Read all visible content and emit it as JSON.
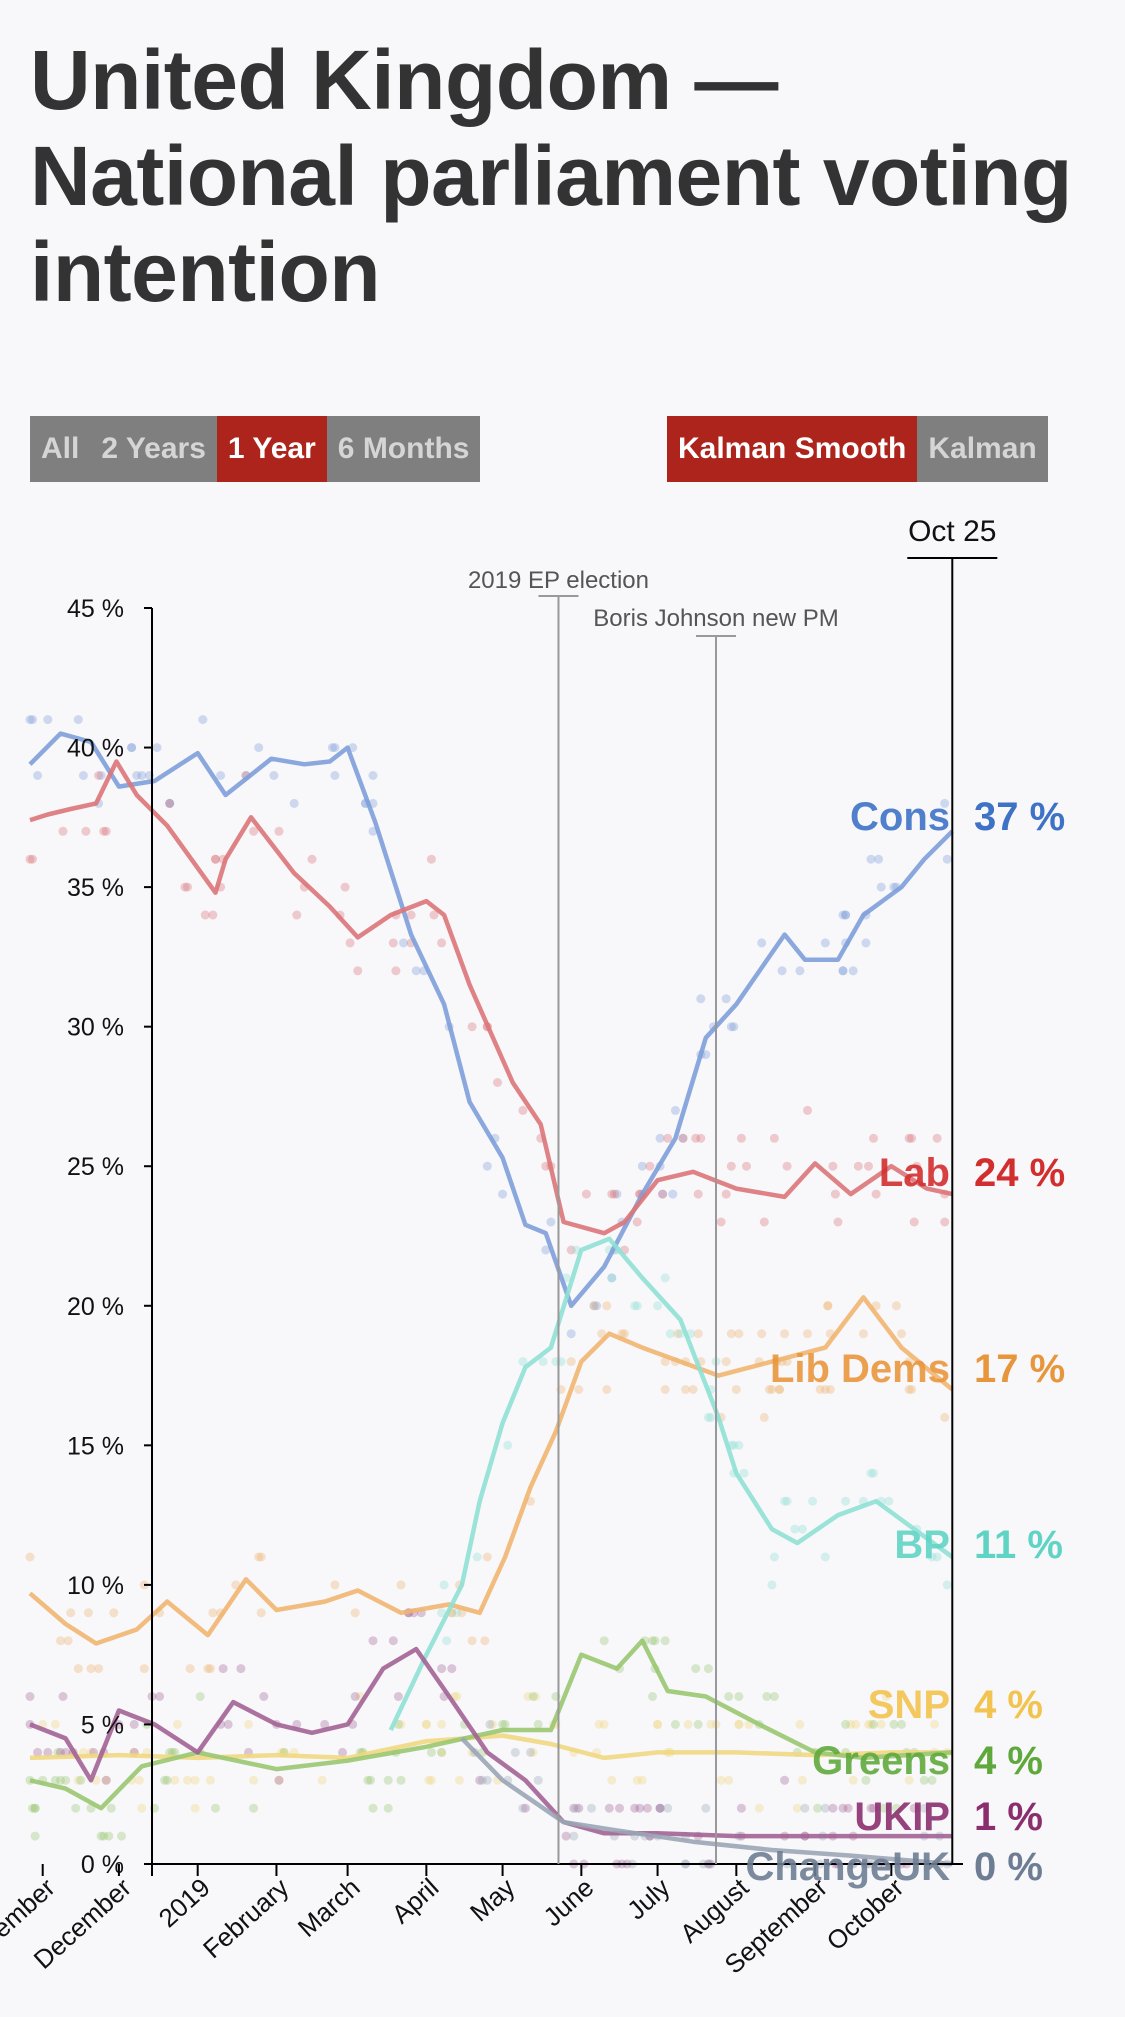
{
  "title": "United Kingdom — National parliament voting intention",
  "range_buttons": [
    {
      "label": "All",
      "active": false
    },
    {
      "label": "2 Years",
      "active": false
    },
    {
      "label": "1 Year",
      "active": true
    },
    {
      "label": "6 Months",
      "active": false
    }
  ],
  "model_buttons": [
    {
      "label": "Kalman Smooth",
      "active": true
    },
    {
      "label": "Kalman",
      "active": false
    }
  ],
  "chart_data": {
    "type": "line",
    "ylim": [
      0,
      45
    ],
    "y_ticks": [
      "0 %",
      "5 %",
      "10 %",
      "15 %",
      "20 %",
      "25 %",
      "30 %",
      "35 %",
      "40 %",
      "45 %"
    ],
    "y_tick_values": [
      0,
      5,
      10,
      15,
      20,
      25,
      30,
      35,
      40,
      45
    ],
    "x_ticks": [
      "November",
      "December",
      "2019",
      "February",
      "March",
      "April",
      "May",
      "June",
      "July",
      "August",
      "September",
      "October"
    ],
    "x_tick_dates": [
      "2018-11-01",
      "2018-12-01",
      "2019-01-01",
      "2019-02-01",
      "2019-03-01",
      "2019-04-01",
      "2019-05-01",
      "2019-06-01",
      "2019-07-01",
      "2019-08-01",
      "2019-09-01",
      "2019-10-01"
    ],
    "x_range": [
      "2018-10-27",
      "2019-10-30"
    ],
    "current_date_label": "Oct 25",
    "current_date": "2019-10-25",
    "events": [
      {
        "label": "2019 EP election",
        "date": "2019-05-23"
      },
      {
        "label": "Boris Johnson new PM",
        "date": "2019-07-24"
      }
    ],
    "grid": false,
    "legend": "end-of-line labels",
    "series": [
      {
        "name": "Cons",
        "label": "37 %",
        "color": "#3d72c6",
        "line_color": "#7d9fd9",
        "points": [
          [
            "2018-10-27",
            39.4
          ],
          [
            "2018-11-08",
            40.5
          ],
          [
            "2018-11-20",
            40.2
          ],
          [
            "2018-12-01",
            38.6
          ],
          [
            "2018-12-15",
            38.8
          ],
          [
            "2019-01-01",
            39.8
          ],
          [
            "2019-01-12",
            38.3
          ],
          [
            "2019-01-30",
            39.6
          ],
          [
            "2019-02-12",
            39.4
          ],
          [
            "2019-02-22",
            39.5
          ],
          [
            "2019-03-01",
            40.0
          ],
          [
            "2019-03-12",
            37.3
          ],
          [
            "2019-03-26",
            33.3
          ],
          [
            "2019-04-08",
            30.8
          ],
          [
            "2019-04-18",
            27.3
          ],
          [
            "2019-05-01",
            25.3
          ],
          [
            "2019-05-10",
            22.9
          ],
          [
            "2019-05-18",
            22.6
          ],
          [
            "2019-05-28",
            20.0
          ],
          [
            "2019-06-10",
            21.4
          ],
          [
            "2019-06-25",
            24.0
          ],
          [
            "2019-07-08",
            26.0
          ],
          [
            "2019-07-20",
            29.6
          ],
          [
            "2019-08-01",
            30.8
          ],
          [
            "2019-08-20",
            33.3
          ],
          [
            "2019-08-28",
            32.4
          ],
          [
            "2019-09-10",
            32.4
          ],
          [
            "2019-09-20",
            34.0
          ],
          [
            "2019-10-05",
            35.0
          ],
          [
            "2019-10-14",
            36.0
          ],
          [
            "2019-10-25",
            37.0
          ]
        ]
      },
      {
        "name": "Lab",
        "label": "24 %",
        "color": "#d22e2e",
        "line_color": "#db7478",
        "points": [
          [
            "2018-10-27",
            37.4
          ],
          [
            "2018-11-03",
            37.6
          ],
          [
            "2018-11-12",
            37.8
          ],
          [
            "2018-11-22",
            38.0
          ],
          [
            "2018-11-30",
            39.5
          ],
          [
            "2018-12-08",
            38.3
          ],
          [
            "2018-12-20",
            37.2
          ],
          [
            "2019-01-08",
            34.8
          ],
          [
            "2019-01-12",
            36.0
          ],
          [
            "2019-01-22",
            37.5
          ],
          [
            "2019-02-08",
            35.5
          ],
          [
            "2019-02-22",
            34.3
          ],
          [
            "2019-03-05",
            33.2
          ],
          [
            "2019-03-18",
            34.0
          ],
          [
            "2019-04-01",
            34.5
          ],
          [
            "2019-04-08",
            34.0
          ],
          [
            "2019-04-18",
            31.5
          ],
          [
            "2019-05-05",
            28.0
          ],
          [
            "2019-05-16",
            26.5
          ],
          [
            "2019-05-25",
            23.0
          ],
          [
            "2019-06-10",
            22.6
          ],
          [
            "2019-06-18",
            23.0
          ],
          [
            "2019-07-01",
            24.5
          ],
          [
            "2019-07-15",
            24.8
          ],
          [
            "2019-08-01",
            24.2
          ],
          [
            "2019-08-20",
            23.9
          ],
          [
            "2019-09-01",
            25.1
          ],
          [
            "2019-09-15",
            24.0
          ],
          [
            "2019-10-01",
            25.0
          ],
          [
            "2019-10-15",
            24.2
          ],
          [
            "2019-10-25",
            24.0
          ]
        ]
      },
      {
        "name": "Lib Dems",
        "label": "17 %",
        "color": "#e8963c",
        "line_color": "#efb56f",
        "points": [
          [
            "2018-10-27",
            9.7
          ],
          [
            "2018-11-10",
            8.6
          ],
          [
            "2018-11-22",
            7.9
          ],
          [
            "2018-12-08",
            8.4
          ],
          [
            "2018-12-20",
            9.4
          ],
          [
            "2019-01-05",
            8.2
          ],
          [
            "2019-01-20",
            10.2
          ],
          [
            "2019-02-01",
            9.1
          ],
          [
            "2019-02-20",
            9.4
          ],
          [
            "2019-03-05",
            9.8
          ],
          [
            "2019-03-22",
            9.0
          ],
          [
            "2019-04-10",
            9.3
          ],
          [
            "2019-04-22",
            9.0
          ],
          [
            "2019-05-02",
            11.0
          ],
          [
            "2019-05-12",
            13.5
          ],
          [
            "2019-05-22",
            15.5
          ],
          [
            "2019-06-01",
            18.0
          ],
          [
            "2019-06-12",
            19.0
          ],
          [
            "2019-06-25",
            18.5
          ],
          [
            "2019-07-10",
            18.0
          ],
          [
            "2019-07-25",
            17.5
          ],
          [
            "2019-08-15",
            18.0
          ],
          [
            "2019-09-05",
            18.5
          ],
          [
            "2019-09-20",
            20.3
          ],
          [
            "2019-10-05",
            18.5
          ],
          [
            "2019-10-25",
            17.0
          ]
        ]
      },
      {
        "name": "BP",
        "label": "11 %",
        "color": "#5fd4c4",
        "line_color": "#8ee0d4",
        "points": [
          [
            "2019-03-18",
            4.8
          ],
          [
            "2019-04-01",
            7.5
          ],
          [
            "2019-04-15",
            10.0
          ],
          [
            "2019-04-22",
            13.0
          ],
          [
            "2019-05-01",
            15.8
          ],
          [
            "2019-05-10",
            17.8
          ],
          [
            "2019-05-20",
            18.5
          ],
          [
            "2019-06-01",
            22.0
          ],
          [
            "2019-06-12",
            22.4
          ],
          [
            "2019-06-25",
            21.0
          ],
          [
            "2019-07-10",
            19.5
          ],
          [
            "2019-07-25",
            16.0
          ],
          [
            "2019-08-01",
            14.0
          ],
          [
            "2019-08-15",
            12.0
          ],
          [
            "2019-08-25",
            11.5
          ],
          [
            "2019-09-10",
            12.5
          ],
          [
            "2019-09-25",
            13.0
          ],
          [
            "2019-10-10",
            12.0
          ],
          [
            "2019-10-25",
            11.0
          ]
        ]
      },
      {
        "name": "SNP",
        "label": "4 %",
        "color": "#f2c34e",
        "line_color": "#f0d77f",
        "points": [
          [
            "2018-10-27",
            3.8
          ],
          [
            "2018-12-01",
            3.9
          ],
          [
            "2019-01-01",
            3.8
          ],
          [
            "2019-02-01",
            3.9
          ],
          [
            "2019-03-01",
            3.8
          ],
          [
            "2019-04-01",
            4.4
          ],
          [
            "2019-05-01",
            4.6
          ],
          [
            "2019-05-20",
            4.3
          ],
          [
            "2019-06-10",
            3.8
          ],
          [
            "2019-07-01",
            4.0
          ],
          [
            "2019-08-01",
            4.0
          ],
          [
            "2019-09-01",
            3.9
          ],
          [
            "2019-10-01",
            4.0
          ],
          [
            "2019-10-25",
            4.0
          ]
        ]
      },
      {
        "name": "Greens",
        "label": "4 %",
        "color": "#5fa83c",
        "line_color": "#99c770",
        "points": [
          [
            "2018-10-27",
            3.0
          ],
          [
            "2018-11-10",
            2.7
          ],
          [
            "2018-11-24",
            2.0
          ],
          [
            "2018-12-10",
            3.5
          ],
          [
            "2019-01-01",
            4.0
          ],
          [
            "2019-02-01",
            3.4
          ],
          [
            "2019-03-01",
            3.7
          ],
          [
            "2019-04-01",
            4.2
          ],
          [
            "2019-05-01",
            4.8
          ],
          [
            "2019-05-20",
            4.8
          ],
          [
            "2019-06-01",
            7.5
          ],
          [
            "2019-06-15",
            7.0
          ],
          [
            "2019-06-25",
            8.0
          ],
          [
            "2019-07-05",
            6.2
          ],
          [
            "2019-07-20",
            6.0
          ],
          [
            "2019-08-10",
            5.0
          ],
          [
            "2019-09-01",
            4.0
          ],
          [
            "2019-09-20",
            3.8
          ],
          [
            "2019-10-25",
            4.0
          ]
        ]
      },
      {
        "name": "UKIP",
        "label": "1 %",
        "color": "#8b2e6e",
        "line_color": "#a26395",
        "points": [
          [
            "2018-10-27",
            5.0
          ],
          [
            "2018-11-10",
            4.5
          ],
          [
            "2018-11-20",
            3.0
          ],
          [
            "2018-12-01",
            5.5
          ],
          [
            "2018-12-15",
            5.0
          ],
          [
            "2019-01-01",
            4.0
          ],
          [
            "2019-01-15",
            5.8
          ],
          [
            "2019-02-01",
            5.0
          ],
          [
            "2019-02-15",
            4.7
          ],
          [
            "2019-03-01",
            5.0
          ],
          [
            "2019-03-15",
            7.0
          ],
          [
            "2019-03-28",
            7.7
          ],
          [
            "2019-04-10",
            6.0
          ],
          [
            "2019-04-25",
            4.0
          ],
          [
            "2019-05-10",
            3.0
          ],
          [
            "2019-05-25",
            1.5
          ],
          [
            "2019-06-10",
            1.1
          ],
          [
            "2019-07-01",
            1.1
          ],
          [
            "2019-08-01",
            1.0
          ],
          [
            "2019-09-01",
            1.0
          ],
          [
            "2019-10-25",
            1.0
          ]
        ]
      },
      {
        "name": "ChangeUK",
        "label": "0 %",
        "color": "#6e7d94",
        "line_color": "#9aa5b5",
        "points": [
          [
            "2019-04-15",
            4.5
          ],
          [
            "2019-05-01",
            3.0
          ],
          [
            "2019-05-25",
            1.5
          ],
          [
            "2019-06-15",
            1.2
          ],
          [
            "2019-07-15",
            0.8
          ],
          [
            "2019-08-15",
            0.5
          ],
          [
            "2019-09-15",
            0.3
          ],
          [
            "2019-10-25",
            0.0
          ]
        ]
      }
    ]
  }
}
